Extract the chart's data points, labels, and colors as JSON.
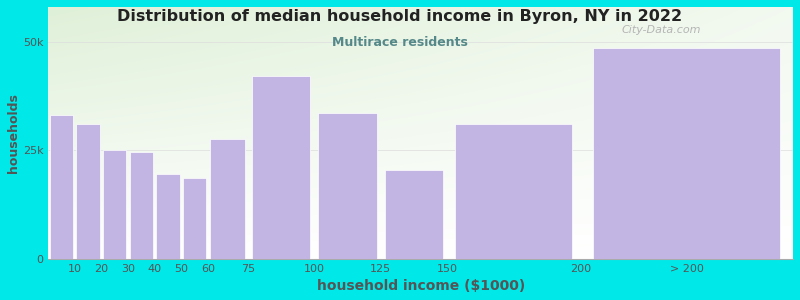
{
  "title": "Distribution of median household income in Byron, NY in 2022",
  "subtitle": "Multirace residents",
  "xlabel": "household income ($1000)",
  "ylabel": "households",
  "bar_left_edges": [
    0,
    10,
    20,
    30,
    40,
    50,
    60,
    75,
    100,
    125,
    150,
    200
  ],
  "bar_widths": [
    10,
    10,
    10,
    10,
    10,
    10,
    15,
    25,
    25,
    25,
    50,
    80
  ],
  "values": [
    33000,
    31000,
    25000,
    24500,
    19500,
    18500,
    27500,
    42000,
    33500,
    20500,
    31000,
    48500
  ],
  "xtick_positions": [
    10,
    20,
    30,
    40,
    50,
    60,
    75,
    100,
    125,
    150,
    200,
    240
  ],
  "xtick_labels": [
    "10",
    "20",
    "30",
    "40",
    "50",
    "60",
    "75",
    "100",
    "125",
    "150",
    "200",
    "> 200"
  ],
  "bar_color": "#c3b5e3",
  "bar_edge_color": "#ffffff",
  "background_outer": "#00e8e8",
  "plot_bg_top_left": "#dff0d8",
  "plot_bg_right": "#f0f0f0",
  "title_color": "#222222",
  "subtitle_color": "#558888",
  "axis_label_color": "#555555",
  "tick_color": "#555555",
  "ytick_labels": [
    "0",
    "25k",
    "50k"
  ],
  "ytick_values": [
    0,
    25000,
    50000
  ],
  "ylim": [
    0,
    58000
  ],
  "xlim": [
    0,
    280
  ],
  "watermark": "City-Data.com",
  "grid_color": "#dddddd"
}
